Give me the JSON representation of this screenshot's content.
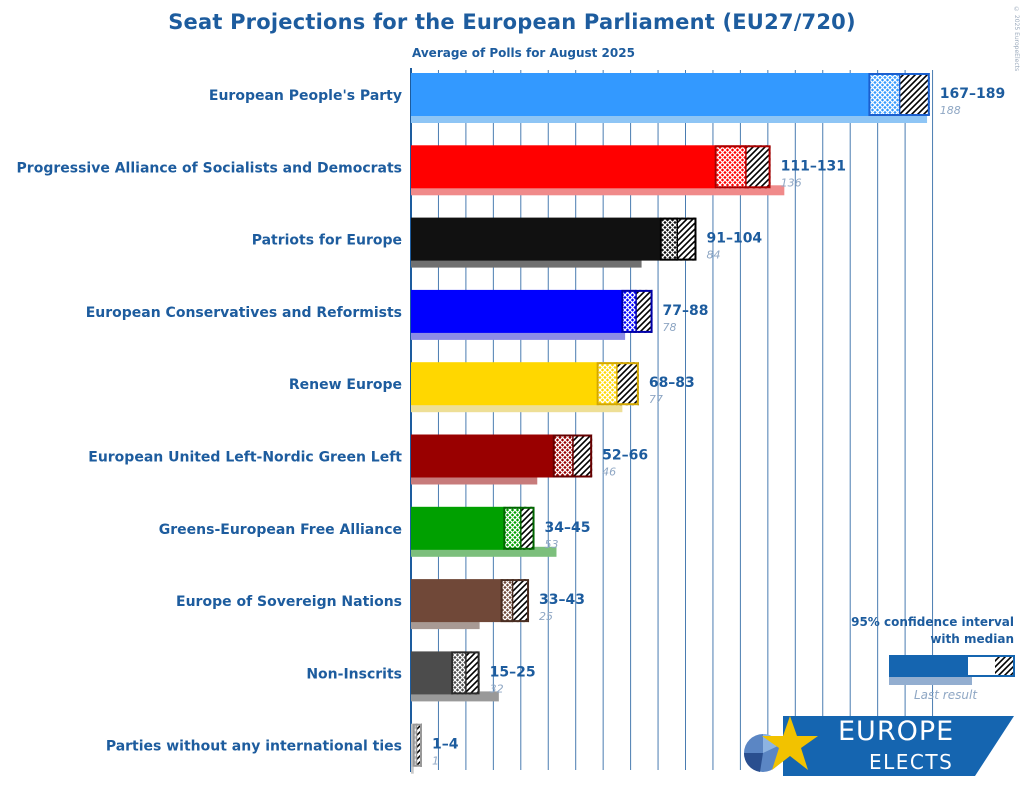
{
  "title": "Seat Projections for the European Parliament (EU27/720)",
  "subtitle": "Average of Polls for August 2025",
  "copyright": "© 2025 EuropeElects",
  "legend": {
    "title_line1": "95% confidence interval",
    "title_line2": "with median",
    "last_result": "Last result"
  },
  "logo": {
    "line1": "EUROPE",
    "line2": "ELECTS"
  },
  "chart_data": {
    "type": "bar",
    "orientation": "horizontal",
    "title": "Seat Projections for the European Parliament (EU27/720)",
    "subtitle": "Average of Polls for August 2025",
    "xlim": [
      0,
      195
    ],
    "grid": true,
    "legend_position": "bottom-right",
    "categories": [
      "European People's Party",
      "Progressive Alliance of Socialists and Democrats",
      "Patriots for Europe",
      "European Conservatives and Reformists",
      "Renew Europe",
      "European United Left-Nordic Green Left",
      "Greens-European Free Alliance",
      "Europe of Sovereign Nations",
      "Non-Inscrits",
      "Parties without any international ties"
    ],
    "series": [
      {
        "name": "95% confidence interval with median",
        "low": [
          167,
          111,
          91,
          77,
          68,
          52,
          34,
          33,
          15,
          1
        ],
        "median": [
          178,
          122,
          97,
          82,
          75,
          59,
          40,
          37,
          20,
          2
        ],
        "high": [
          189,
          131,
          104,
          88,
          83,
          66,
          45,
          43,
          25,
          4
        ]
      },
      {
        "name": "Last result",
        "values": [
          188,
          136,
          84,
          78,
          77,
          46,
          53,
          25,
          32,
          1
        ]
      }
    ],
    "range_labels": [
      "167–189",
      "111–131",
      "91–104",
      "77–88",
      "68–83",
      "52–66",
      "34–45",
      "33–43",
      "15–25",
      "1–4"
    ],
    "last_labels": [
      "188",
      "136",
      "84",
      "78",
      "77",
      "46",
      "53",
      "25",
      "32",
      "1"
    ],
    "colors": {
      "bars": [
        "#3399ff",
        "#ff0000",
        "#111111",
        "#0000ff",
        "#ffd700",
        "#990000",
        "#00a000",
        "#704838",
        "#4c4c4c",
        "#c0c0c0"
      ],
      "last": [
        "#8ec5f5",
        "#f08a8a",
        "#707070",
        "#8c8ce6",
        "#eedf96",
        "#c77b7b",
        "#7cbf7c",
        "#a89a94",
        "#999999",
        "#c8c8c8"
      ],
      "outline": [
        "#1a5fcf",
        "#aa0000",
        "#000000",
        "#0000aa",
        "#d4a800",
        "#660000",
        "#006600",
        "#4a2e22",
        "#2a2a2a",
        "#999999"
      ],
      "grid": "#1d5c9e",
      "text": "#1d5c9e",
      "legend_bar": "#1565b0",
      "legend_last": "#93aed0",
      "logo_bg": "#1565b0"
    }
  }
}
